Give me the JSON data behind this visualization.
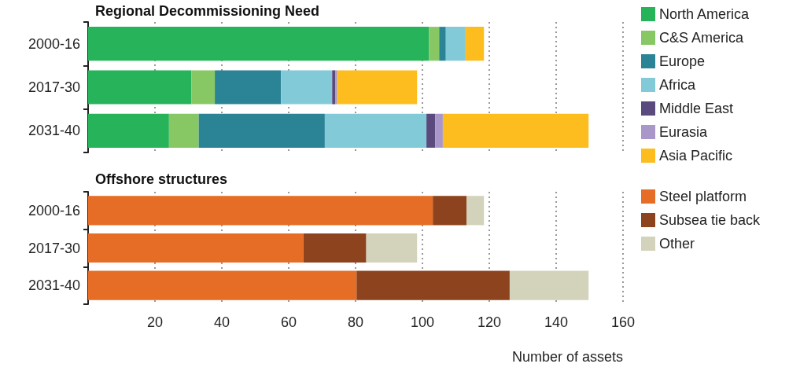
{
  "chart_data": [
    {
      "type": "bar",
      "title": "Regional Decommissioning Need",
      "orientation": "horizontal",
      "stacked": true,
      "categories": [
        "2000-16",
        "2017-30",
        "2031-40"
      ],
      "xlim": [
        0,
        160
      ],
      "xticks": [
        20,
        40,
        60,
        80,
        100,
        120,
        140,
        160
      ],
      "grid": "x",
      "legend": "right",
      "tick_labels": "y",
      "series": [
        {
          "name": "North America",
          "color": "#27b35a",
          "values": [
            102,
            30.9,
            24.2
          ]
        },
        {
          "name": "C&S America",
          "color": "#88c864",
          "values": [
            3,
            7,
            8.9
          ]
        },
        {
          "name": "Europe",
          "color": "#2a8496",
          "values": [
            2,
            19.8,
            37.7
          ]
        },
        {
          "name": "Africa",
          "color": "#82cad8",
          "values": [
            5.7,
            15.3,
            30.4
          ]
        },
        {
          "name": "Middle East",
          "color": "#5a4a7d",
          "values": [
            0,
            0.9,
            2.6
          ]
        },
        {
          "name": "Eurasia",
          "color": "#a897c8",
          "values": [
            0,
            0.6,
            2.3
          ]
        },
        {
          "name": "Asia Pacific",
          "color": "#fdbd1f",
          "values": [
            5.7,
            23.9,
            43.6
          ]
        }
      ]
    },
    {
      "type": "bar",
      "title": "Offshore structures",
      "xlabel": "Number of assets",
      "orientation": "horizontal",
      "stacked": true,
      "categories": [
        "2000-16",
        "2017-30",
        "2031-40"
      ],
      "xlim": [
        0,
        160
      ],
      "xticks": [
        20,
        40,
        60,
        80,
        100,
        120,
        140,
        160
      ],
      "grid": "x",
      "legend": "right",
      "series": [
        {
          "name": "Steel platform",
          "color": "#e56d25",
          "values": [
            103.1,
            64.4,
            80.3
          ]
        },
        {
          "name": "Subsea tie back",
          "color": "#8d441e",
          "values": [
            10.1,
            18.8,
            45.8
          ]
        },
        {
          "name": "Other",
          "color": "#d3d2bb",
          "values": [
            5.2,
            15.2,
            23.6
          ]
        }
      ]
    }
  ]
}
